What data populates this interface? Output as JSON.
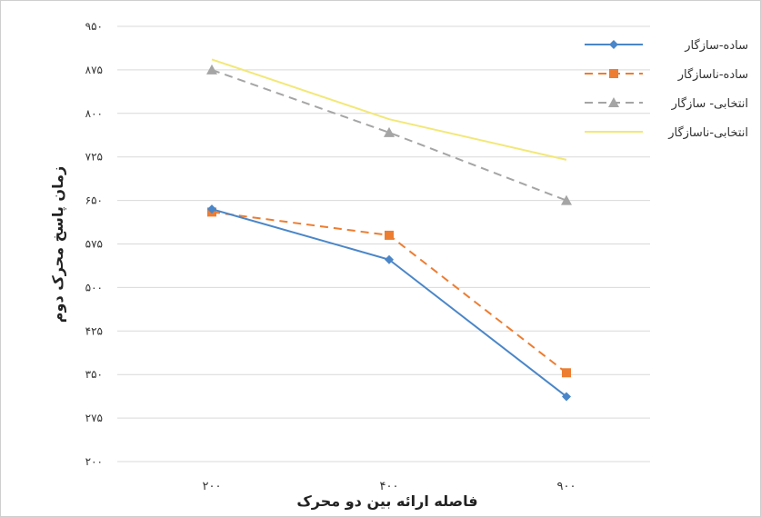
{
  "chart_data": {
    "type": "line",
    "title": "",
    "xlabel": "فاصله ارائه بین دو محرک",
    "ylabel": "زمان پاسخ محرک دوم",
    "categories": [
      "۲۰۰",
      "۴۰۰",
      "۹۰۰"
    ],
    "ylim": [
      200,
      950
    ],
    "yticks": [
      200,
      275,
      350,
      425,
      500,
      575,
      650,
      725,
      800,
      875,
      950
    ],
    "ytick_labels": [
      "۲۰۰",
      "۲۷۵",
      "۳۵۰",
      "۴۲۵",
      "۵۰۰",
      "۵۷۵",
      "۶۵۰",
      "۷۲۵",
      "۸۰۰",
      "۸۷۵",
      "۹۵۰"
    ],
    "grid": "horizontal",
    "legend_position": "top-right",
    "series": [
      {
        "name": "ساده-سازگار",
        "values": [
          635,
          548,
          312
        ],
        "color": "#4a86c8",
        "dash": "solid",
        "marker": "diamond"
      },
      {
        "name": "ساده-ناسازگار",
        "values": [
          630,
          590,
          353
        ],
        "color": "#ed7d31",
        "dash": "dashed",
        "marker": "square"
      },
      {
        "name": "انتخابی- سازگار",
        "values": [
          875,
          767,
          650
        ],
        "color": "#a5a5a5",
        "dash": "dashed",
        "marker": "triangle"
      },
      {
        "name": "انتخابی-ناسازگار",
        "values": [
          893,
          790,
          720
        ],
        "color": "#f2e878",
        "dash": "solid",
        "marker": "none"
      }
    ]
  }
}
